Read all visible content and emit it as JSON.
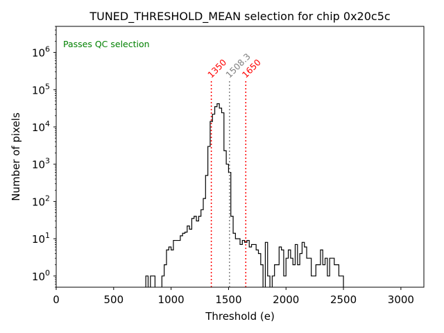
{
  "chart_data": {
    "type": "histogram",
    "title": "TUNED_THRESHOLD_MEAN selection for chip 0x20c5c",
    "xlabel": "Threshold (e)",
    "ylabel": "Number of pixels",
    "xlim": [
      0,
      3200
    ],
    "ylim": [
      0.5,
      5000000
    ],
    "yscale": "log",
    "xticks": [
      0,
      500,
      1000,
      1500,
      2000,
      2500,
      3000
    ],
    "xtick_labels": [
      "0",
      "500",
      "1000",
      "1500",
      "2000",
      "2500",
      "3000"
    ],
    "yticks": [
      1,
      10,
      100,
      1000,
      10000,
      100000,
      1000000
    ],
    "ytick_labels": [
      {
        "base": "10",
        "exp": "0"
      },
      {
        "base": "10",
        "exp": "1"
      },
      {
        "base": "10",
        "exp": "2"
      },
      {
        "base": "10",
        "exp": "3"
      },
      {
        "base": "10",
        "exp": "4"
      },
      {
        "base": "10",
        "exp": "5"
      },
      {
        "base": "10",
        "exp": "6"
      }
    ],
    "annotation": {
      "text": "Passes QC selection",
      "color": "#008000"
    },
    "lines": [
      {
        "x": 1350,
        "label": "1350",
        "color": "#ff0000",
        "style": "dotted"
      },
      {
        "x": 1508.3,
        "label": "1508.3",
        "color": "#808080",
        "style": "dotted"
      },
      {
        "x": 1650,
        "label": "1650",
        "color": "#ff0000",
        "style": "dotted"
      }
    ],
    "bin_edges": [
      780,
      800,
      820,
      840,
      860,
      880,
      900,
      920,
      940,
      960,
      980,
      1000,
      1020,
      1040,
      1060,
      1080,
      1100,
      1120,
      1140,
      1160,
      1180,
      1200,
      1220,
      1240,
      1260,
      1280,
      1300,
      1320,
      1340,
      1360,
      1380,
      1400,
      1420,
      1440,
      1460,
      1480,
      1500,
      1520,
      1540,
      1560,
      1580,
      1600,
      1620,
      1640,
      1660,
      1680,
      1700,
      1720,
      1740,
      1760,
      1780,
      1800,
      1820,
      1840,
      1860,
      1880,
      1900,
      1920,
      1940,
      1960,
      1980,
      2000,
      2020,
      2040,
      2060,
      2080,
      2100,
      2120,
      2140,
      2160,
      2180,
      2200,
      2220,
      2240,
      2260,
      2280,
      2300,
      2320,
      2340,
      2360,
      2380,
      2400,
      2420,
      2440,
      2460,
      2480,
      2500
    ],
    "counts": [
      1,
      0,
      1,
      1,
      0,
      0,
      0,
      1,
      2,
      5,
      6,
      5,
      9,
      9,
      9,
      12,
      14,
      15,
      22,
      18,
      35,
      40,
      30,
      40,
      60,
      120,
      500,
      3000,
      14000,
      22000,
      35000,
      42000,
      32000,
      24000,
      2300,
      1000,
      600,
      40,
      14,
      10,
      10,
      7,
      9,
      8,
      9,
      6,
      7,
      7,
      5,
      4,
      2,
      0,
      8,
      1,
      0,
      1,
      2,
      2,
      6,
      5,
      1,
      3,
      5,
      3,
      2,
      7,
      2,
      4,
      8,
      6,
      3,
      3,
      1,
      1,
      2,
      2,
      5,
      2,
      3,
      1,
      3,
      3,
      2,
      2,
      1,
      1
    ],
    "bar_color": "#000000"
  }
}
